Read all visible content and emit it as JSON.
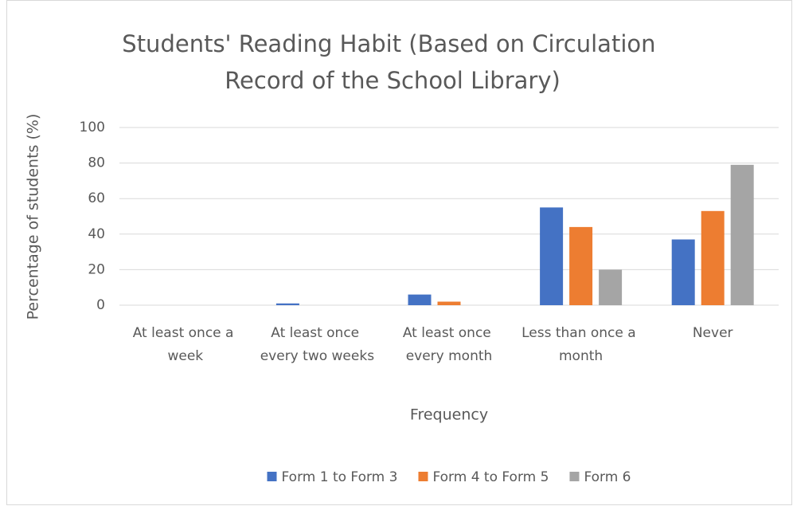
{
  "chart_data": {
    "type": "bar",
    "title": "Students' Reading Habit (Based on Circulation Record of the School Library)",
    "x_label": "Frequency",
    "y_label": "Percentage of students (%)",
    "categories": [
      "At least once a week",
      "At least once every two weeks",
      "At least once every month",
      "Less than once a month",
      "Never"
    ],
    "series": [
      {
        "name": "Form 1 to Form 3",
        "color": "#4472c4",
        "values": [
          0,
          1,
          6,
          55,
          37
        ]
      },
      {
        "name": "Form 4 to Form 5",
        "color": "#ed7d31",
        "values": [
          0,
          0,
          2,
          44,
          53
        ]
      },
      {
        "name": "Form 6",
        "color": "#a5a5a5",
        "values": [
          0,
          0,
          0,
          20,
          79
        ]
      }
    ],
    "ylim": [
      0,
      100
    ],
    "yticks": [
      0,
      20,
      40,
      60,
      80,
      100
    ],
    "grid": true,
    "legend": "bottom"
  }
}
